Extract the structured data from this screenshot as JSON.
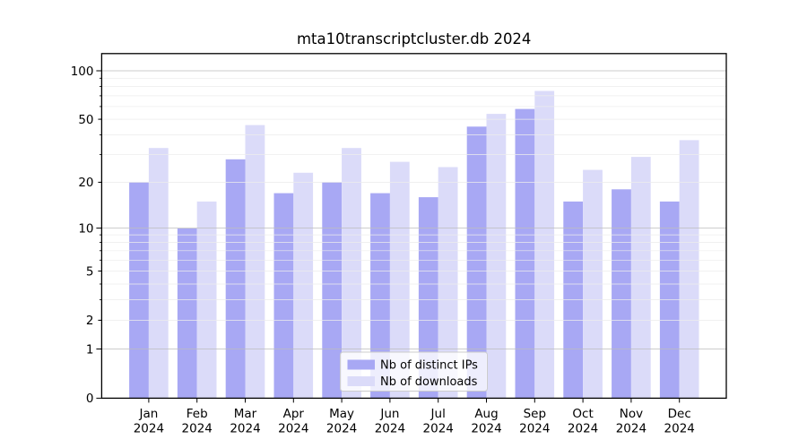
{
  "chart_data": {
    "type": "bar",
    "title": "mta10transcriptcluster.db 2024",
    "categories": [
      "Jan",
      "Feb",
      "Mar",
      "Apr",
      "May",
      "Jun",
      "Jul",
      "Aug",
      "Sep",
      "Oct",
      "Nov",
      "Dec"
    ],
    "xtick_year_line": "2024",
    "series": [
      {
        "name": "Nb of distinct IPs",
        "color": "#a8a8f4",
        "values": [
          20,
          10,
          28,
          17,
          20,
          17,
          16,
          45,
          58,
          15,
          18,
          15
        ]
      },
      {
        "name": "Nb of downloads",
        "color": "#dbdbf9",
        "values": [
          33,
          15,
          46,
          23,
          33,
          27,
          25,
          54,
          75,
          24,
          29,
          37
        ]
      }
    ],
    "yscale": "log1p",
    "ytick_labels": [
      "0",
      "1",
      "2",
      "5",
      "10",
      "20",
      "50",
      "100"
    ],
    "ytick_values": [
      0,
      1,
      2,
      5,
      10,
      20,
      50,
      100
    ],
    "ylim": [
      0,
      128
    ],
    "grid": true,
    "legend_position": "lower center",
    "legend_entries": [
      "Nb of distinct IPs",
      "Nb of downloads"
    ]
  },
  "colors": {
    "background": "#ffffff",
    "axis": "#000000",
    "grid_major": "#bdbdbd",
    "grid_minor": "#ececec",
    "legend_border": "#cccccc",
    "legend_fill": "#ffffff",
    "text": "#000000"
  }
}
